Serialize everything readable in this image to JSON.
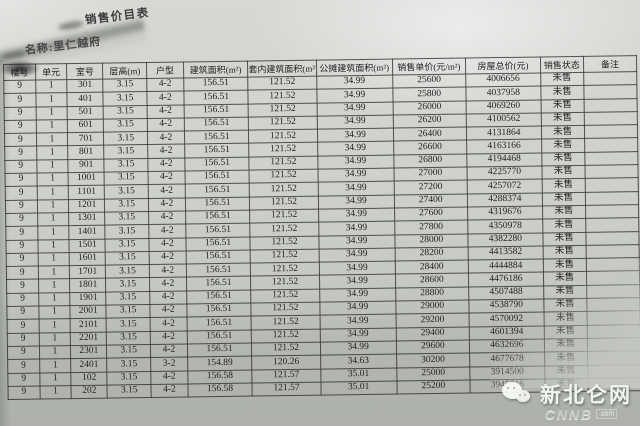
{
  "document": {
    "title": "销售价目表",
    "subtitle": "名称:里仁越府"
  },
  "table": {
    "headers": [
      "楼号",
      "单元",
      "室号",
      "层高(m)",
      "户型",
      "建筑面积(m²)",
      "套内建筑面积(m²)",
      "公摊建筑面积(m²)",
      "销售单价(元/m²)",
      "房屋总价(元)",
      "销售状态",
      "备注"
    ],
    "rows": [
      [
        "9",
        "1",
        "301",
        "3.15",
        "4-2",
        "156.51",
        "121.52",
        "34.99",
        "25600",
        "4006656",
        "未售",
        ""
      ],
      [
        "9",
        "1",
        "401",
        "3.15",
        "4-2",
        "156.51",
        "121.52",
        "34.99",
        "25800",
        "4037958",
        "未售",
        ""
      ],
      [
        "9",
        "1",
        "501",
        "3.15",
        "4-2",
        "156.51",
        "121.52",
        "34.99",
        "26000",
        "4069260",
        "未售",
        ""
      ],
      [
        "9",
        "1",
        "601",
        "3.15",
        "4-2",
        "156.51",
        "121.52",
        "34.99",
        "26200",
        "4100562",
        "未售",
        ""
      ],
      [
        "9",
        "1",
        "701",
        "3.15",
        "4-2",
        "156.51",
        "121.52",
        "34.99",
        "26400",
        "4131864",
        "未售",
        ""
      ],
      [
        "9",
        "1",
        "801",
        "3.15",
        "4-2",
        "156.51",
        "121.52",
        "34.99",
        "26600",
        "4163166",
        "未售",
        ""
      ],
      [
        "9",
        "1",
        "901",
        "3.15",
        "4-2",
        "156.51",
        "121.52",
        "34.99",
        "26800",
        "4194468",
        "未售",
        ""
      ],
      [
        "9",
        "1",
        "1001",
        "3.15",
        "4-2",
        "156.51",
        "121.52",
        "34.99",
        "27000",
        "4225770",
        "未售",
        ""
      ],
      [
        "9",
        "1",
        "1101",
        "3.15",
        "4-2",
        "156.51",
        "121.52",
        "34.99",
        "27200",
        "4257072",
        "未售",
        ""
      ],
      [
        "9",
        "1",
        "1201",
        "3.15",
        "4-2",
        "156.51",
        "121.52",
        "34.99",
        "27400",
        "4288374",
        "未售",
        ""
      ],
      [
        "9",
        "1",
        "1301",
        "3.15",
        "4-2",
        "156.51",
        "121.52",
        "34.99",
        "27600",
        "4319676",
        "未售",
        ""
      ],
      [
        "9",
        "1",
        "1401",
        "3.15",
        "4-2",
        "156.51",
        "121.52",
        "34.99",
        "27800",
        "4350978",
        "未售",
        ""
      ],
      [
        "9",
        "1",
        "1501",
        "3.15",
        "4-2",
        "156.51",
        "121.52",
        "34.99",
        "28000",
        "4382280",
        "未售",
        ""
      ],
      [
        "9",
        "1",
        "1601",
        "3.15",
        "4-2",
        "156.51",
        "121.52",
        "34.99",
        "28200",
        "4413582",
        "未售",
        ""
      ],
      [
        "9",
        "1",
        "1701",
        "3.15",
        "4-2",
        "156.51",
        "121.52",
        "34.99",
        "28400",
        "4444884",
        "未售",
        ""
      ],
      [
        "9",
        "1",
        "1801",
        "3.15",
        "4-2",
        "156.51",
        "121.52",
        "34.99",
        "28600",
        "4476186",
        "未售",
        ""
      ],
      [
        "9",
        "1",
        "1901",
        "3.15",
        "4-2",
        "156.51",
        "121.52",
        "34.99",
        "28800",
        "4507488",
        "未售",
        ""
      ],
      [
        "9",
        "1",
        "2001",
        "3.15",
        "4-2",
        "156.51",
        "121.52",
        "34.99",
        "29000",
        "4538790",
        "未售",
        ""
      ],
      [
        "9",
        "1",
        "2101",
        "3.15",
        "4-2",
        "156.51",
        "121.52",
        "34.99",
        "29200",
        "4570092",
        "未售",
        ""
      ],
      [
        "9",
        "1",
        "2201",
        "3.15",
        "4-2",
        "156.51",
        "121.52",
        "34.99",
        "29400",
        "4601394",
        "未售",
        ""
      ],
      [
        "9",
        "1",
        "2301",
        "3.15",
        "4-2",
        "156.51",
        "121.52",
        "34.99",
        "29600",
        "4632696",
        "未售",
        ""
      ],
      [
        "9",
        "1",
        "2401",
        "3.15",
        "3-2",
        "154.89",
        "120.26",
        "34.63",
        "30200",
        "4677678",
        "未售",
        ""
      ],
      [
        "9",
        "1",
        "102",
        "3.15",
        "4-2",
        "156.58",
        "121.57",
        "35.01",
        "25000",
        "3914500",
        "未售",
        ""
      ],
      [
        "9",
        "1",
        "202",
        "3.15",
        "4-2",
        "156.58",
        "121.57",
        "35.01",
        "25200",
        "3945816",
        "未售",
        ""
      ]
    ]
  },
  "watermark": {
    "site_name": "新北仑网",
    "site_code": "CNNB",
    "site_suffix": ".com"
  },
  "colors": {
    "paper": "#cdd0cb",
    "paper_shadow": "#adb0ab",
    "ink": "#232323",
    "watermark_light": "#f3f5f1"
  }
}
